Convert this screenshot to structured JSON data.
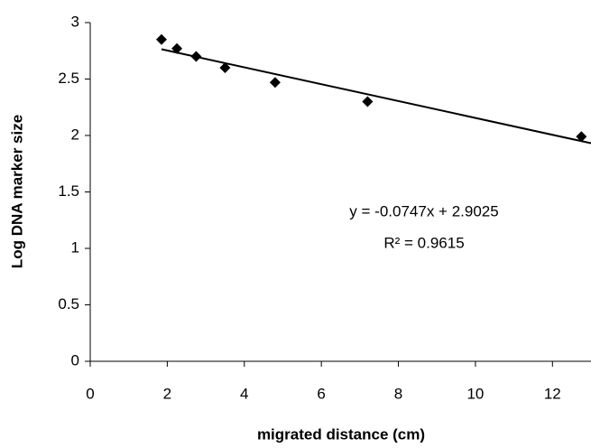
{
  "chart_data": {
    "type": "scatter",
    "xlabel": "migrated distance (cm)",
    "ylabel": "Log DNA marker size",
    "x": [
      1.85,
      2.25,
      2.75,
      3.5,
      4.8,
      7.2,
      12.75
    ],
    "values": [
      2.85,
      2.77,
      2.7,
      2.6,
      2.47,
      2.3,
      1.99
    ],
    "color": "#000000",
    "trendline": {
      "x": [
        1.85,
        13
      ],
      "values": [
        2.7643,
        1.9314
      ]
    },
    "equation": "y = -0.0747x + 2.9025",
    "r_squared": "R² = 0.9615",
    "xlim": [
      0,
      13
    ],
    "xticks": [
      0,
      2,
      4,
      6,
      8,
      10,
      12
    ],
    "ylim": [
      0,
      3
    ],
    "yticks": [
      0,
      0.5,
      1,
      1.5,
      2,
      2.5,
      3
    ],
    "grid": false
  }
}
